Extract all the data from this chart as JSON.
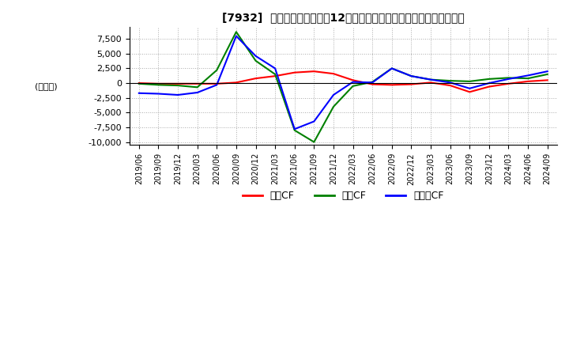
{
  "title": "[7932]  キャッシュフローの12か月移動合計の対前年同期増減額の推移",
  "ylabel": "(百万円)",
  "ylim": [
    -10500,
    9500
  ],
  "yticks": [
    -10000,
    -7500,
    -5000,
    -2500,
    0,
    2500,
    5000,
    7500
  ],
  "background_color": "#ffffff",
  "grid_color": "#aaaaaa",
  "legend_labels": [
    "営業CF",
    "投資CF",
    "フリーCF"
  ],
  "line_colors": [
    "#ff0000",
    "#008000",
    "#0000ff"
  ],
  "dates": [
    "2019/06",
    "2019/09",
    "2019/12",
    "2020/03",
    "2020/06",
    "2020/09",
    "2020/12",
    "2021/03",
    "2021/06",
    "2021/09",
    "2021/12",
    "2022/03",
    "2022/06",
    "2022/09",
    "2022/12",
    "2023/03",
    "2023/06",
    "2023/09",
    "2023/12",
    "2024/03",
    "2024/06",
    "2024/09"
  ],
  "operating_cf": [
    0,
    -100,
    -100,
    -100,
    -100,
    100,
    800,
    1200,
    1800,
    2000,
    1600,
    500,
    -200,
    -300,
    -200,
    100,
    -400,
    -1500,
    -600,
    -100,
    300,
    500
  ],
  "investing_cf": [
    -100,
    -300,
    -400,
    -700,
    2200,
    8700,
    3800,
    1500,
    -8000,
    -10000,
    -4000,
    -500,
    200,
    2500,
    1200,
    600,
    400,
    300,
    700,
    900,
    800,
    1500
  ],
  "free_cf": [
    -1700,
    -1800,
    -2000,
    -1600,
    -300,
    8000,
    4600,
    2500,
    -7800,
    -6500,
    -2000,
    200,
    100,
    2500,
    1200,
    600,
    100,
    -900,
    0,
    700,
    1300,
    2000
  ]
}
